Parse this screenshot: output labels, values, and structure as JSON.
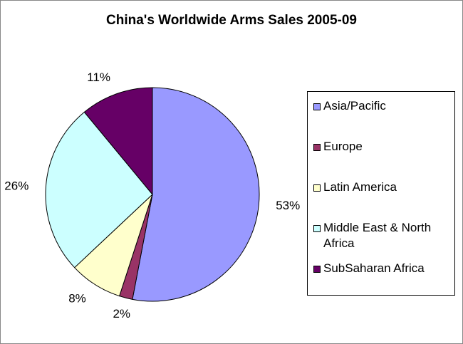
{
  "chart_data": {
    "type": "pie",
    "title": "China's Worldwide Arms Sales 2005-09",
    "categories": [
      "Asia/Pacific",
      "Europe",
      "Latin America",
      "Middle East & North Africa",
      "SubSaharan Africa"
    ],
    "values": [
      53,
      2,
      8,
      26,
      11
    ],
    "value_labels": [
      "53%",
      "2%",
      "8%",
      "26%",
      "11%"
    ],
    "colors": [
      "#9999ff",
      "#993366",
      "#ffffcc",
      "#ccffff",
      "#660066"
    ],
    "legend": "right"
  }
}
